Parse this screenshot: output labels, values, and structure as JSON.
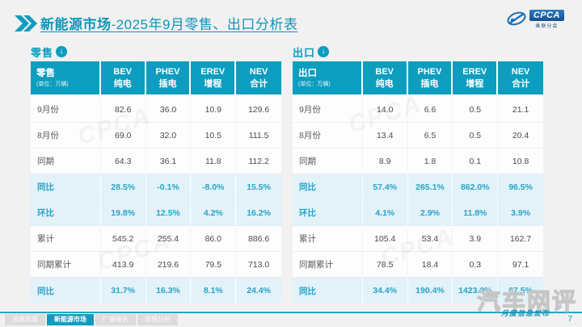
{
  "header": {
    "title_main": "新能源市场",
    "title_rest": "-2025年9月零售、出口分析表",
    "logo_text": "CPCA",
    "logo_sub": "乘联分会"
  },
  "unit_note": "(单位：万辆)",
  "columns": [
    {
      "en": "BEV",
      "zh": "纯电"
    },
    {
      "en": "PHEV",
      "zh": "插电"
    },
    {
      "en": "EREV",
      "zh": "增程"
    },
    {
      "en": "NEV",
      "zh": "合计"
    }
  ],
  "tables": [
    {
      "id": "retail",
      "section_label": "零售",
      "corner_label": "零售",
      "rows": [
        {
          "label": "9月份",
          "values": [
            "82.6",
            "36.0",
            "10.9",
            "129.6"
          ],
          "highlight": false
        },
        {
          "label": "8月份",
          "values": [
            "69.0",
            "32.0",
            "10.5",
            "111.5"
          ],
          "highlight": false
        },
        {
          "label": "同期",
          "values": [
            "64.3",
            "36.1",
            "11.8",
            "112.2"
          ],
          "highlight": false
        },
        {
          "label": "同比",
          "values": [
            "28.5%",
            "-0.1%",
            "-8.0%",
            "15.5%"
          ],
          "highlight": true
        },
        {
          "label": "环比",
          "values": [
            "19.8%",
            "12.5%",
            "4.2%",
            "16.2%"
          ],
          "highlight": true
        },
        {
          "label": "累计",
          "values": [
            "545.2",
            "255.4",
            "86.0",
            "886.6"
          ],
          "highlight": false
        },
        {
          "label": "同期累计",
          "values": [
            "413.9",
            "219.6",
            "79.5",
            "713.0"
          ],
          "highlight": false
        },
        {
          "label": "同比",
          "values": [
            "31.7%",
            "16.3%",
            "8.1%",
            "24.4%"
          ],
          "highlight": true
        }
      ]
    },
    {
      "id": "export",
      "section_label": "出口",
      "corner_label": "出口",
      "rows": [
        {
          "label": "9月份",
          "values": [
            "14.0",
            "6.6",
            "0.5",
            "21.1"
          ],
          "highlight": false
        },
        {
          "label": "8月份",
          "values": [
            "13.4",
            "6.5",
            "0.5",
            "20.4"
          ],
          "highlight": false
        },
        {
          "label": "同期",
          "values": [
            "8.9",
            "1.8",
            "0.1",
            "10.8"
          ],
          "highlight": false
        },
        {
          "label": "同比",
          "values": [
            "57.4%",
            "265.1%",
            "862.0%",
            "96.5%"
          ],
          "highlight": true
        },
        {
          "label": "环比",
          "values": [
            "4.1%",
            "2.9%",
            "11.8%",
            "3.9%"
          ],
          "highlight": true
        },
        {
          "label": "累计",
          "values": [
            "105.4",
            "53.4",
            "3.9",
            "162.7"
          ],
          "highlight": false
        },
        {
          "label": "同期累计",
          "values": [
            "78.5",
            "18.4",
            "0.3",
            "97.1"
          ],
          "highlight": false
        },
        {
          "label": "同比",
          "values": [
            "34.4%",
            "190.4%",
            "1423.9%",
            "67.5%"
          ],
          "highlight": true
        }
      ]
    }
  ],
  "footer": {
    "tabs": [
      {
        "label": "总体市场",
        "active": false
      },
      {
        "label": "新能源市场",
        "active": true
      },
      {
        "label": "厂商排名",
        "active": false
      },
      {
        "label": "市场分析",
        "active": false
      }
    ],
    "page_number": "7",
    "watermark_title": "汽车网评",
    "watermark_script": "月度信息发布"
  },
  "table_watermark_text": "CPCA",
  "colors": {
    "accent_teal": "#0d9dbf",
    "highlight_bg": "#e3f2f9",
    "highlight_text": "#27a4c9",
    "logo_blue": "#144f93"
  }
}
